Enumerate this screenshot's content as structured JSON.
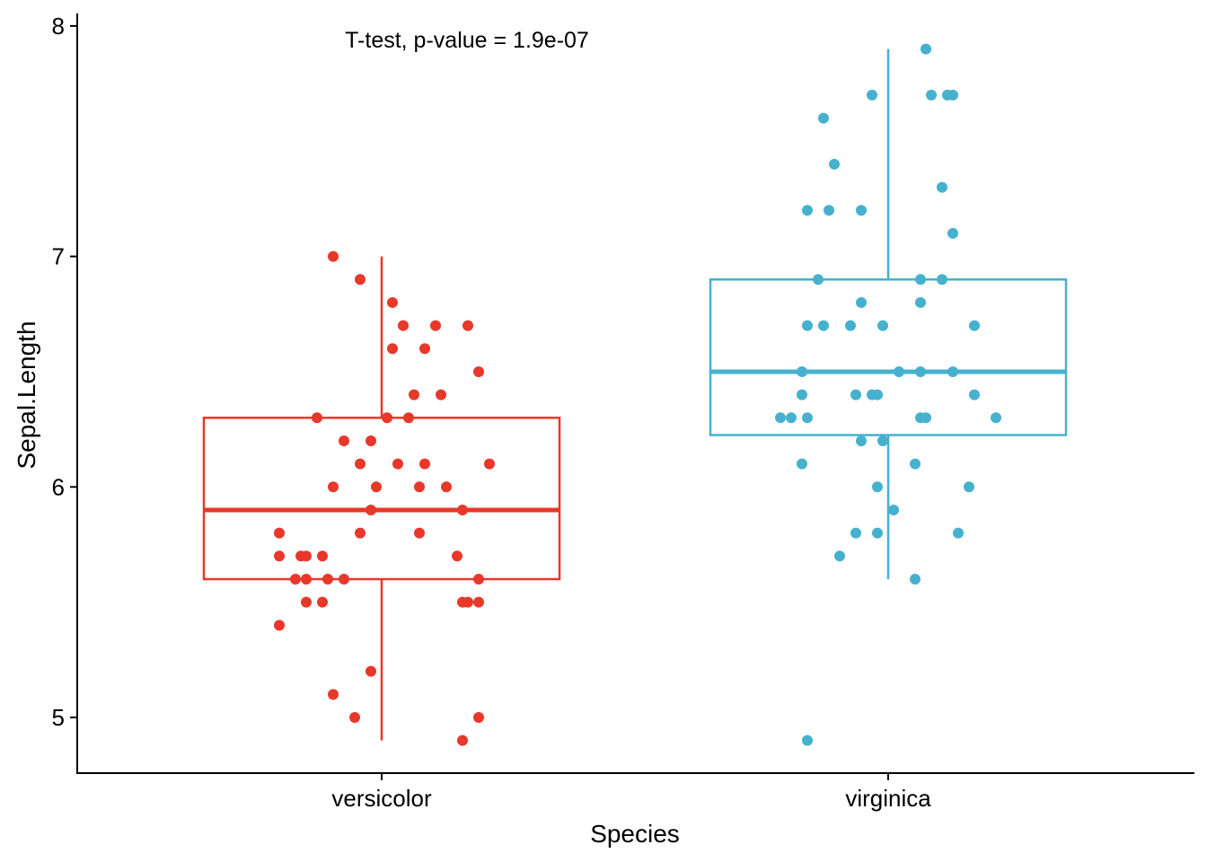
{
  "chart_data": {
    "type": "box",
    "xlabel": "Species",
    "ylabel": "Sepal.Length",
    "ylim": [
      4.75,
      8.05
    ],
    "yticks": [
      5,
      6,
      7,
      8
    ],
    "annotation": "T-test, p-value = 1.9e-07",
    "grid": false,
    "legend": "none",
    "categories": [
      "versicolor",
      "virginica"
    ],
    "series": [
      {
        "category": "versicolor",
        "color": "#E7382A",
        "box": {
          "min": 4.9,
          "q1": 5.6,
          "median": 5.9,
          "q3": 6.3,
          "max": 7.0
        },
        "points": [
          {
            "jitter": -0.09,
            "y": 7.0
          },
          {
            "jitter": -0.04,
            "y": 6.9
          },
          {
            "jitter": 0.02,
            "y": 6.8
          },
          {
            "jitter": 0.1,
            "y": 6.7
          },
          {
            "jitter": 0.04,
            "y": 6.7
          },
          {
            "jitter": 0.16,
            "y": 6.7
          },
          {
            "jitter": 0.08,
            "y": 6.6
          },
          {
            "jitter": 0.02,
            "y": 6.6
          },
          {
            "jitter": 0.18,
            "y": 6.5
          },
          {
            "jitter": 0.06,
            "y": 6.4
          },
          {
            "jitter": 0.11,
            "y": 6.4
          },
          {
            "jitter": -0.12,
            "y": 6.3
          },
          {
            "jitter": 0.01,
            "y": 6.3
          },
          {
            "jitter": 0.05,
            "y": 6.3
          },
          {
            "jitter": -0.07,
            "y": 6.2
          },
          {
            "jitter": -0.02,
            "y": 6.2
          },
          {
            "jitter": 0.03,
            "y": 6.1
          },
          {
            "jitter": -0.04,
            "y": 6.1
          },
          {
            "jitter": 0.08,
            "y": 6.1
          },
          {
            "jitter": 0.2,
            "y": 6.1
          },
          {
            "jitter": -0.01,
            "y": 6.0
          },
          {
            "jitter": 0.12,
            "y": 6.0
          },
          {
            "jitter": -0.09,
            "y": 6.0
          },
          {
            "jitter": 0.07,
            "y": 6.0
          },
          {
            "jitter": 0.15,
            "y": 5.9
          },
          {
            "jitter": -0.02,
            "y": 5.9
          },
          {
            "jitter": -0.19,
            "y": 5.8
          },
          {
            "jitter": 0.07,
            "y": 5.8
          },
          {
            "jitter": -0.04,
            "y": 5.8
          },
          {
            "jitter": -0.19,
            "y": 5.7
          },
          {
            "jitter": -0.14,
            "y": 5.7
          },
          {
            "jitter": 0.14,
            "y": 5.7
          },
          {
            "jitter": -0.11,
            "y": 5.7
          },
          {
            "jitter": -0.15,
            "y": 5.7
          },
          {
            "jitter": -0.16,
            "y": 5.6
          },
          {
            "jitter": -0.14,
            "y": 5.6
          },
          {
            "jitter": -0.1,
            "y": 5.6
          },
          {
            "jitter": -0.07,
            "y": 5.6
          },
          {
            "jitter": 0.18,
            "y": 5.6
          },
          {
            "jitter": 0.15,
            "y": 5.5
          },
          {
            "jitter": 0.16,
            "y": 5.5
          },
          {
            "jitter": 0.18,
            "y": 5.5
          },
          {
            "jitter": -0.11,
            "y": 5.5
          },
          {
            "jitter": -0.14,
            "y": 5.5
          },
          {
            "jitter": -0.19,
            "y": 5.4
          },
          {
            "jitter": -0.02,
            "y": 5.2
          },
          {
            "jitter": -0.09,
            "y": 5.1
          },
          {
            "jitter": 0.18,
            "y": 5.0
          },
          {
            "jitter": -0.05,
            "y": 5.0
          },
          {
            "jitter": 0.15,
            "y": 4.9
          }
        ]
      },
      {
        "category": "virginica",
        "color": "#46B1CE",
        "box": {
          "min": 5.6,
          "q1": 6.225,
          "median": 6.5,
          "q3": 6.9,
          "max": 7.9
        },
        "points": [
          {
            "jitter": 0.07,
            "y": 7.9
          },
          {
            "jitter": 0.08,
            "y": 7.7
          },
          {
            "jitter": -0.03,
            "y": 7.7
          },
          {
            "jitter": 0.12,
            "y": 7.7
          },
          {
            "jitter": 0.11,
            "y": 7.7
          },
          {
            "jitter": -0.12,
            "y": 7.6
          },
          {
            "jitter": -0.1,
            "y": 7.4
          },
          {
            "jitter": 0.1,
            "y": 7.3
          },
          {
            "jitter": -0.15,
            "y": 7.2
          },
          {
            "jitter": -0.11,
            "y": 7.2
          },
          {
            "jitter": -0.05,
            "y": 7.2
          },
          {
            "jitter": 0.12,
            "y": 7.1
          },
          {
            "jitter": -0.13,
            "y": 6.9
          },
          {
            "jitter": 0.1,
            "y": 6.9
          },
          {
            "jitter": 0.06,
            "y": 6.9
          },
          {
            "jitter": -0.05,
            "y": 6.8
          },
          {
            "jitter": 0.06,
            "y": 6.8
          },
          {
            "jitter": -0.07,
            "y": 6.7
          },
          {
            "jitter": -0.01,
            "y": 6.7
          },
          {
            "jitter": -0.12,
            "y": 6.7
          },
          {
            "jitter": -0.15,
            "y": 6.7
          },
          {
            "jitter": 0.16,
            "y": 6.7
          },
          {
            "jitter": 0.12,
            "y": 6.5
          },
          {
            "jitter": -0.16,
            "y": 6.5
          },
          {
            "jitter": 0.06,
            "y": 6.5
          },
          {
            "jitter": 0.02,
            "y": 6.5
          },
          {
            "jitter": -0.06,
            "y": 6.4
          },
          {
            "jitter": -0.03,
            "y": 6.4
          },
          {
            "jitter": -0.02,
            "y": 6.4
          },
          {
            "jitter": 0.16,
            "y": 6.4
          },
          {
            "jitter": -0.16,
            "y": 6.4
          },
          {
            "jitter": -0.18,
            "y": 6.3
          },
          {
            "jitter": -0.2,
            "y": 6.3
          },
          {
            "jitter": 0.06,
            "y": 6.3
          },
          {
            "jitter": 0.07,
            "y": 6.3
          },
          {
            "jitter": -0.15,
            "y": 6.3
          },
          {
            "jitter": 0.2,
            "y": 6.3
          },
          {
            "jitter": -0.05,
            "y": 6.2
          },
          {
            "jitter": -0.01,
            "y": 6.2
          },
          {
            "jitter": -0.16,
            "y": 6.1
          },
          {
            "jitter": 0.05,
            "y": 6.1
          },
          {
            "jitter": 0.15,
            "y": 6.0
          },
          {
            "jitter": -0.02,
            "y": 6.0
          },
          {
            "jitter": 0.01,
            "y": 5.9
          },
          {
            "jitter": -0.06,
            "y": 5.8
          },
          {
            "jitter": -0.02,
            "y": 5.8
          },
          {
            "jitter": 0.13,
            "y": 5.8
          },
          {
            "jitter": -0.09,
            "y": 5.7
          },
          {
            "jitter": 0.05,
            "y": 5.6
          },
          {
            "jitter": -0.15,
            "y": 4.9
          }
        ]
      }
    ]
  }
}
